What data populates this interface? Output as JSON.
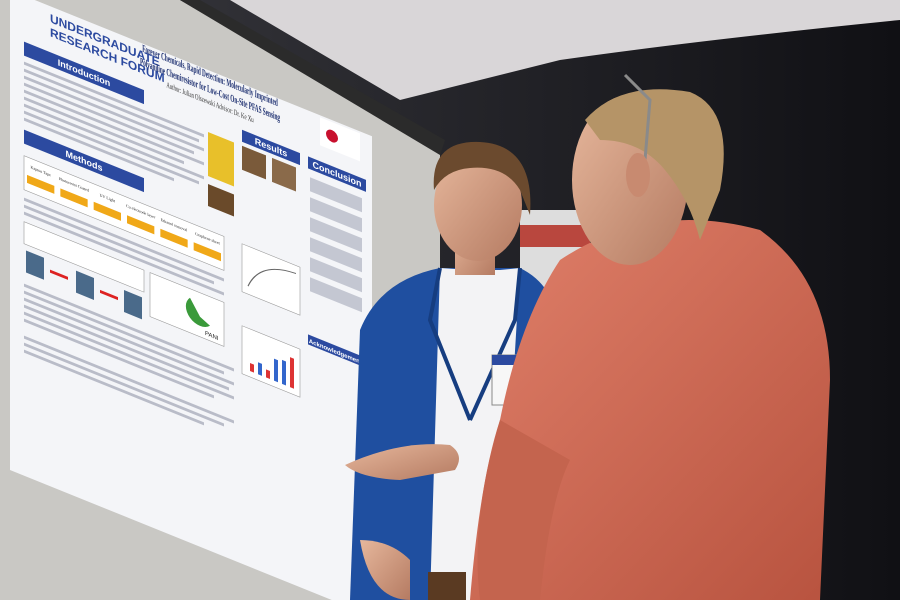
{
  "poster": {
    "header": [
      "UNDERGRADUATE",
      "RESEARCH FORUM"
    ],
    "title": [
      "Forever Chemicals, Rapid Detection: Molecularly Imprinted",
      "Polyaniline Chemiresistor for Low-Cost On-Site PFAS Sensing"
    ],
    "author": "Author: Julian Olszewski   Advisor: Dr. Ke Xu",
    "sections": [
      "Introduction",
      "Methods",
      "Results",
      "Conclusion",
      "Acknowledgements"
    ],
    "method_steps": [
      "Kapton Tape",
      "Photoresist Coated",
      "UV Light",
      "Cu electrode layer",
      "Ethanol removal",
      "Graphene sheet"
    ],
    "figure_label": "PANI"
  }
}
